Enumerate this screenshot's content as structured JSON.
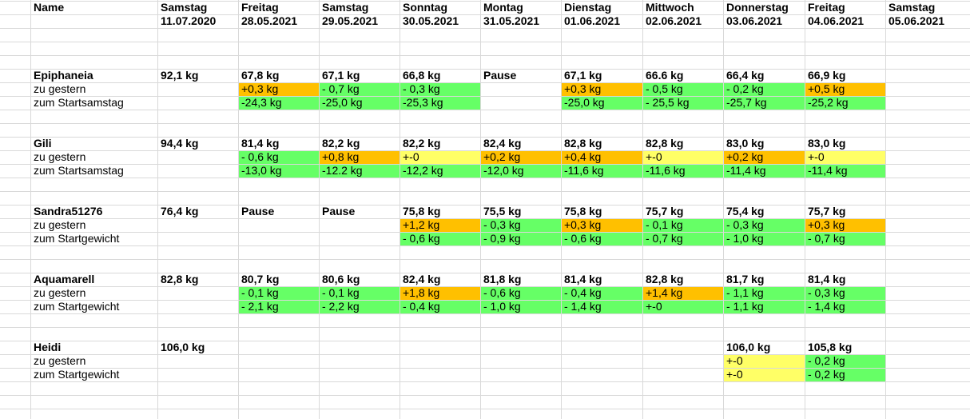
{
  "colors": {
    "green": "#66ff66",
    "orange": "#ffc000",
    "yellow": "#ffff66",
    "gridline": "#d9d9d9"
  },
  "header": {
    "name_label": "Name",
    "days": [
      {
        "weekday": "Samstag",
        "date": "11.07.2020"
      },
      {
        "weekday": "Freitag",
        "date": "28.05.2021"
      },
      {
        "weekday": "Samstag",
        "date": "29.05.2021"
      },
      {
        "weekday": "Sonntag",
        "date": "30.05.2021"
      },
      {
        "weekday": "Montag",
        "date": "31.05.2021"
      },
      {
        "weekday": "Dienstag",
        "date": "01.06.2021"
      },
      {
        "weekday": "Mittwoch",
        "date": "02.06.2021"
      },
      {
        "weekday": "Donnerstag",
        "date": "03.06.2021"
      },
      {
        "weekday": "Freitag",
        "date": "04.06.2021"
      },
      {
        "weekday": "Samstag",
        "date": "05.06.2021"
      }
    ]
  },
  "people": [
    {
      "name": "Epiphaneia",
      "weights": [
        "92,1 kg",
        "67,8 kg",
        "67,1 kg",
        "66,8 kg",
        "Pause",
        "67,1 kg",
        "66.6 kg",
        "66,4 kg",
        "66,9 kg",
        ""
      ],
      "rows": [
        {
          "label": "zu gestern",
          "values": [
            "",
            "+0,3 kg",
            "- 0,7 kg",
            "- 0,3 kg",
            "",
            "+0,3 kg",
            "- 0,5 kg",
            "- 0,2 kg",
            "+0,5 kg",
            ""
          ],
          "colors": [
            "",
            "orange",
            "green",
            "green",
            "",
            "orange",
            "green",
            "green",
            "orange",
            ""
          ]
        },
        {
          "label": "zum Startsamstag",
          "values": [
            "",
            "-24,3 kg",
            "-25,0 kg",
            "-25,3 kg",
            "",
            "-25,0 kg",
            "- 25,5 kg",
            "-25,7 kg",
            "-25,2 kg",
            ""
          ],
          "colors": [
            "",
            "green",
            "green",
            "green",
            "",
            "green",
            "green",
            "green",
            "green",
            ""
          ]
        }
      ]
    },
    {
      "name": "Gili",
      "weights": [
        "94,4 kg",
        "81,4 kg",
        "82,2 kg",
        "82,2 kg",
        "82,4 kg",
        "82,8 kg",
        "82,8 kg",
        "83,0 kg",
        "83,0 kg",
        ""
      ],
      "rows": [
        {
          "label": "zu gestern",
          "values": [
            "",
            "- 0,6 kg",
            "+0,8 kg",
            "+-0",
            "+0,2 kg",
            "+0,4 kg",
            "+-0",
            "+0,2 kg",
            "+-0",
            ""
          ],
          "colors": [
            "",
            "green",
            "orange",
            "yellow",
            "orange",
            "orange",
            "yellow",
            "orange",
            "yellow",
            ""
          ]
        },
        {
          "label": "zum Startsamstag",
          "values": [
            "",
            "-13,0 kg",
            "-12.2 kg",
            "-12,2 kg",
            "-12,0 kg",
            "-11,6 kg",
            "-11,6 kg",
            "-11,4 kg",
            "-11,4 kg",
            ""
          ],
          "colors": [
            "",
            "green",
            "green",
            "green",
            "green",
            "green",
            "green",
            "green",
            "green",
            ""
          ]
        }
      ]
    },
    {
      "name": "Sandra51276",
      "weights": [
        "76,4 kg",
        "Pause",
        "Pause",
        "75,8 kg",
        "75,5 kg",
        "75,8 kg",
        "75,7 kg",
        "75,4 kg",
        "75,7 kg",
        ""
      ],
      "rows": [
        {
          "label": "zu gestern",
          "values": [
            "",
            "",
            "",
            "+1,2 kg",
            "- 0,3 kg",
            "+0,3 kg",
            "- 0,1 kg",
            "- 0,3 kg",
            "+0,3 kg",
            ""
          ],
          "colors": [
            "",
            "",
            "",
            "orange",
            "green",
            "orange",
            "green",
            "green",
            "orange",
            ""
          ]
        },
        {
          "label": "zum Startgewicht",
          "values": [
            "",
            "",
            "",
            "- 0,6 kg",
            "- 0,9 kg",
            "- 0,6 kg",
            "- 0,7 kg",
            "- 1,0 kg",
            "- 0,7 kg",
            ""
          ],
          "colors": [
            "",
            "",
            "",
            "green",
            "green",
            "green",
            "green",
            "green",
            "green",
            ""
          ]
        }
      ]
    },
    {
      "name": "Aquamarell",
      "weights": [
        "82,8 kg",
        "80,7 kg",
        "80,6 kg",
        "82,4 kg",
        "81,8 kg",
        "81,4 kg",
        "82,8 kg",
        "81,7 kg",
        "81,4 kg",
        ""
      ],
      "rows": [
        {
          "label": "zu gestern",
          "values": [
            "",
            "- 0,1 kg",
            "- 0,1 kg",
            "+1,8 kg",
            "- 0,6 kg",
            "- 0,4 kg",
            "+1,4 kg",
            "- 1,1 kg",
            "- 0,3 kg",
            ""
          ],
          "colors": [
            "",
            "green",
            "green",
            "orange",
            "green",
            "green",
            "orange",
            "green",
            "green",
            ""
          ]
        },
        {
          "label": "zum Startgewicht",
          "values": [
            "",
            "- 2,1 kg",
            "- 2,2 kg",
            "- 0,4 kg",
            "- 1,0 kg",
            "- 1,4 kg",
            "+-0",
            "- 1,1 kg",
            "- 1,4 kg",
            ""
          ],
          "colors": [
            "",
            "green",
            "green",
            "green",
            "green",
            "green",
            "green",
            "green",
            "green",
            ""
          ]
        }
      ]
    },
    {
      "name": "Heidi",
      "weights": [
        "106,0 kg",
        "",
        "",
        "",
        "",
        "",
        "",
        "106,0 kg",
        "105,8 kg",
        ""
      ],
      "rows": [
        {
          "label": "zu gestern",
          "values": [
            "",
            "",
            "",
            "",
            "",
            "",
            "",
            "+-0",
            "- 0,2 kg",
            ""
          ],
          "colors": [
            "",
            "",
            "",
            "",
            "",
            "",
            "",
            "yellow",
            "green",
            ""
          ]
        },
        {
          "label": "zum Startgewicht",
          "values": [
            "",
            "",
            "",
            "",
            "",
            "",
            "",
            "+-0",
            "- 0,2 kg",
            ""
          ],
          "colors": [
            "",
            "",
            "",
            "",
            "",
            "",
            "",
            "yellow",
            "green",
            ""
          ]
        }
      ]
    }
  ]
}
